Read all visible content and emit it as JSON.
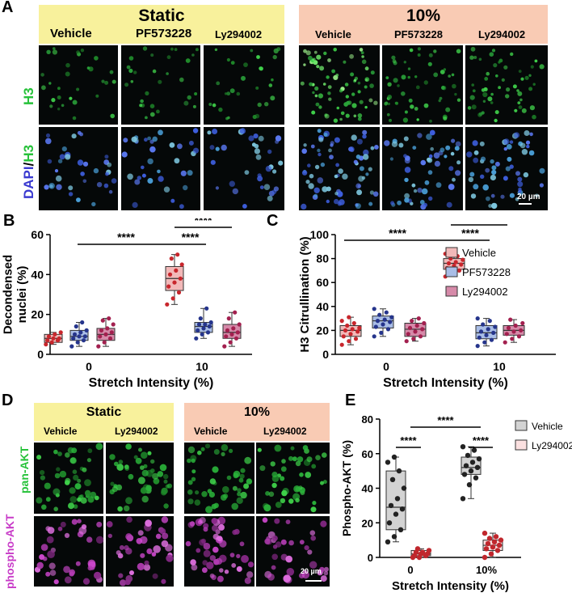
{
  "panels": {
    "A": {
      "letter": "A",
      "group_static": "Static",
      "group_stretch": "10%",
      "columns_static": [
        "Vehicle",
        "PF573228",
        "Ly294002"
      ],
      "columns_stretch": [
        "Vehicle",
        "PF573228",
        "Ly294002"
      ],
      "row_labels": {
        "h3": "H3",
        "dapi": "DAPI",
        "slash": "/",
        "dapi_h3": "H3"
      },
      "scale_bar": "20 µm"
    },
    "D": {
      "letter": "D",
      "group_static": "Static",
      "group_stretch": "10%",
      "columns_static": [
        "Vehicle",
        "Ly294002"
      ],
      "columns_stretch": [
        "Vehicle",
        "Ly294002"
      ],
      "row_labels": {
        "pan": "pan-AKT",
        "phospho": "phospho-AKT"
      },
      "scale_bar": "20 µm"
    },
    "B": {
      "letter": "B"
    },
    "C": {
      "letter": "C"
    },
    "E": {
      "letter": "E"
    }
  },
  "colors": {
    "vehicle": "#f2b9b9",
    "vehicle_dot": "#c8262c",
    "pf": "#a9bde6",
    "pf_dot": "#26358c",
    "ly": "#d68aa9",
    "ly_dot": "#a3204f",
    "vehicle_gray": "#d3d3d3",
    "e_dot_dark": "#222222",
    "ly_e": "#fbe0e0",
    "ly_e_dot": "#c0272d",
    "h3_green": "#27c23a",
    "dapi_blue": "#3a3ad0",
    "magenta": "#c83cc8"
  },
  "chart_data": [
    {
      "id": "B",
      "type": "box",
      "xlabel": "Stretch Intensity (%)",
      "ylabel": "Decondensed nuclei (%)",
      "ylim": [
        0,
        60
      ],
      "yticks": [
        "0",
        "20",
        "40",
        "60"
      ],
      "categories": [
        "0",
        "10"
      ],
      "significance": [
        "****",
        "****",
        "****"
      ],
      "series": [
        {
          "group": "0",
          "key": "vehicle",
          "q1": 6,
          "median": 8,
          "q3": 10,
          "min": 5,
          "max": 11,
          "points": [
            5,
            6,
            7,
            7,
            8,
            8,
            9,
            10,
            11
          ]
        },
        {
          "group": "0",
          "key": "pf",
          "q1": 7,
          "median": 9,
          "q3": 12,
          "min": 4,
          "max": 16,
          "points": [
            4,
            6,
            7,
            8,
            9,
            9,
            10,
            11,
            12,
            14,
            16
          ]
        },
        {
          "group": "0",
          "key": "ly",
          "q1": 7,
          "median": 10,
          "q3": 13,
          "min": 4,
          "max": 18,
          "points": [
            4,
            6,
            8,
            9,
            10,
            11,
            12,
            13,
            15,
            17,
            18
          ]
        },
        {
          "group": "10",
          "key": "vehicle",
          "q1": 32,
          "median": 38,
          "q3": 44,
          "min": 25,
          "max": 50,
          "points": [
            25,
            28,
            31,
            34,
            36,
            38,
            40,
            42,
            45,
            48,
            50
          ]
        },
        {
          "group": "10",
          "key": "pf",
          "q1": 11,
          "median": 14,
          "q3": 16,
          "min": 8,
          "max": 23,
          "points": [
            8,
            10,
            11,
            12,
            13,
            14,
            15,
            15,
            16,
            18,
            23
          ]
        },
        {
          "group": "10",
          "key": "ly",
          "q1": 8,
          "median": 11,
          "q3": 15,
          "min": 4,
          "max": 21,
          "points": [
            4,
            6,
            8,
            9,
            10,
            11,
            12,
            13,
            15,
            18,
            21
          ]
        }
      ]
    },
    {
      "id": "C",
      "type": "box",
      "xlabel": "Stretch Intensity (%)",
      "ylabel": "H3 Citrullination (%)",
      "ylim": [
        0,
        100
      ],
      "yticks": [
        "0",
        "20",
        "40",
        "60",
        "80",
        "100"
      ],
      "categories": [
        "0",
        "10"
      ],
      "significance": [
        "****",
        "****",
        "****"
      ],
      "legend": [
        "Vehicle",
        "PF573228",
        "Ly294002"
      ],
      "series": [
        {
          "group": "0",
          "key": "vehicle",
          "q1": 15,
          "median": 20,
          "q3": 24,
          "min": 8,
          "max": 31,
          "points": [
            8,
            11,
            13,
            15,
            17,
            19,
            20,
            21,
            22,
            24,
            26,
            28,
            31
          ]
        },
        {
          "group": "0",
          "key": "pf",
          "q1": 22,
          "median": 28,
          "q3": 32,
          "min": 15,
          "max": 38,
          "points": [
            15,
            18,
            21,
            23,
            25,
            27,
            28,
            29,
            31,
            33,
            35,
            38
          ]
        },
        {
          "group": "0",
          "key": "ly",
          "q1": 15,
          "median": 21,
          "q3": 26,
          "min": 11,
          "max": 30,
          "points": [
            11,
            13,
            15,
            17,
            19,
            21,
            22,
            24,
            26,
            28,
            30
          ]
        },
        {
          "group": "10",
          "key": "vehicle",
          "q1": 71,
          "median": 76,
          "q3": 80,
          "min": 65,
          "max": 86,
          "points": [
            65,
            68,
            70,
            72,
            74,
            75,
            76,
            77,
            79,
            80,
            82,
            84,
            86
          ]
        },
        {
          "group": "10",
          "key": "pf",
          "q1": 13,
          "median": 18,
          "q3": 24,
          "min": 7,
          "max": 30,
          "points": [
            7,
            10,
            12,
            14,
            16,
            18,
            19,
            21,
            23,
            25,
            28,
            30
          ]
        },
        {
          "group": "10",
          "key": "ly",
          "q1": 16,
          "median": 20,
          "q3": 24,
          "min": 10,
          "max": 29,
          "points": [
            10,
            13,
            15,
            17,
            19,
            20,
            22,
            24,
            26,
            29
          ]
        }
      ]
    },
    {
      "id": "E",
      "type": "box",
      "xlabel": "Stretch Intensity (%)",
      "ylabel": "Phospho-AKT (%)",
      "ylim": [
        0,
        80
      ],
      "yticks": [
        "0",
        "20",
        "40",
        "60",
        "80"
      ],
      "categories": [
        "0",
        "10%"
      ],
      "significance": [
        "****",
        "****",
        "****"
      ],
      "legend": [
        "Vehicle",
        "Ly294002"
      ],
      "series": [
        {
          "group": "0",
          "key": "vehicle_gray",
          "q1": 16,
          "median": 29,
          "q3": 50,
          "min": 9,
          "max": 58,
          "points": [
            9,
            12,
            16,
            20,
            25,
            28,
            30,
            34,
            40,
            45,
            50,
            55,
            58
          ]
        },
        {
          "group": "0",
          "key": "ly_e",
          "q1": 1,
          "median": 2,
          "q3": 4,
          "min": 0,
          "max": 5,
          "points": [
            0,
            0,
            1,
            1,
            2,
            2,
            3,
            3,
            4,
            5
          ]
        },
        {
          "group": "10%",
          "key": "vehicle_gray",
          "q1": 48,
          "median": 52,
          "q3": 58,
          "min": 34,
          "max": 64,
          "points": [
            34,
            42,
            46,
            48,
            50,
            52,
            53,
            55,
            57,
            59,
            62,
            64
          ]
        },
        {
          "group": "10%",
          "key": "ly_e",
          "q1": 4,
          "median": 7,
          "q3": 10,
          "min": 0,
          "max": 14,
          "points": [
            0,
            2,
            4,
            5,
            6,
            7,
            8,
            9,
            10,
            11,
            12,
            14
          ]
        }
      ]
    }
  ]
}
